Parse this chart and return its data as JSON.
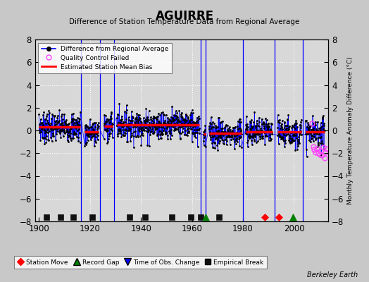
{
  "title": "AGUIRRE",
  "subtitle": "Difference of Station Temperature Data from Regional Average",
  "ylabel_right": "Monthly Temperature Anomaly Difference (°C)",
  "xlim": [
    1898.5,
    2013.5
  ],
  "ylim": [
    -8,
    8
  ],
  "yticks": [
    -8,
    -6,
    -4,
    -2,
    0,
    2,
    4,
    6,
    8
  ],
  "xticks": [
    1900,
    1920,
    1940,
    1960,
    1980,
    2000
  ],
  "fig_bg_color": "#c8c8c8",
  "plot_bg_color": "#c8c8c8",
  "inner_bg_color": "#d8d8d8",
  "grid_color": "#ffffff",
  "credit": "Berkeley Earth",
  "segments": [
    {
      "x_start": 1900.0,
      "x_end": 1916.3,
      "bias": 0.3
    },
    {
      "x_start": 1918.0,
      "x_end": 1923.5,
      "bias": -0.15
    },
    {
      "x_start": 1925.5,
      "x_end": 1929.0,
      "bias": 0.4
    },
    {
      "x_start": 1930.5,
      "x_end": 1963.0,
      "bias": 0.5
    },
    {
      "x_start": 1964.5,
      "x_end": 1965.3,
      "bias": -0.3
    },
    {
      "x_start": 1966.8,
      "x_end": 1979.5,
      "bias": -0.25
    },
    {
      "x_start": 1981.0,
      "x_end": 1991.5,
      "bias": -0.1
    },
    {
      "x_start": 1993.5,
      "x_end": 2003.0,
      "bias": -0.15
    },
    {
      "x_start": 2004.5,
      "x_end": 2012.0,
      "bias": -0.15
    }
  ],
  "vertical_lines": [
    {
      "x": 1916.5,
      "color": "#0000ff"
    },
    {
      "x": 1924.0,
      "color": "#0000ff"
    },
    {
      "x": 1929.5,
      "color": "#0000ff"
    },
    {
      "x": 1963.5,
      "color": "#0000ff"
    },
    {
      "x": 1965.5,
      "color": "#0000ff"
    },
    {
      "x": 1980.0,
      "color": "#0000ff"
    },
    {
      "x": 1992.5,
      "color": "#0000ff"
    },
    {
      "x": 2003.5,
      "color": "#0000ff"
    }
  ],
  "event_markers": [
    {
      "x": 1903.0,
      "type": "empirical_break"
    },
    {
      "x": 1908.5,
      "type": "empirical_break"
    },
    {
      "x": 1913.5,
      "type": "empirical_break"
    },
    {
      "x": 1921.0,
      "type": "empirical_break"
    },
    {
      "x": 1935.5,
      "type": "empirical_break"
    },
    {
      "x": 1941.5,
      "type": "empirical_break"
    },
    {
      "x": 1952.0,
      "type": "empirical_break"
    },
    {
      "x": 1959.5,
      "type": "empirical_break"
    },
    {
      "x": 1963.5,
      "type": "empirical_break"
    },
    {
      "x": 1970.5,
      "type": "empirical_break"
    },
    {
      "x": 1988.5,
      "type": "station_move"
    },
    {
      "x": 1994.0,
      "type": "station_move"
    },
    {
      "x": 1965.5,
      "type": "record_gap"
    },
    {
      "x": 1999.5,
      "type": "record_gap"
    }
  ],
  "noise_seed": 7,
  "noise_std": 0.65,
  "data_color": "#000000",
  "line_color": "#0000ff",
  "bias_color": "#ff0000",
  "qc_color": "#ff44ff",
  "marker_colors": {
    "station_move": "#ff0000",
    "record_gap": "#008000",
    "time_obs_change": "#0000ff",
    "empirical_break": "#111111"
  }
}
